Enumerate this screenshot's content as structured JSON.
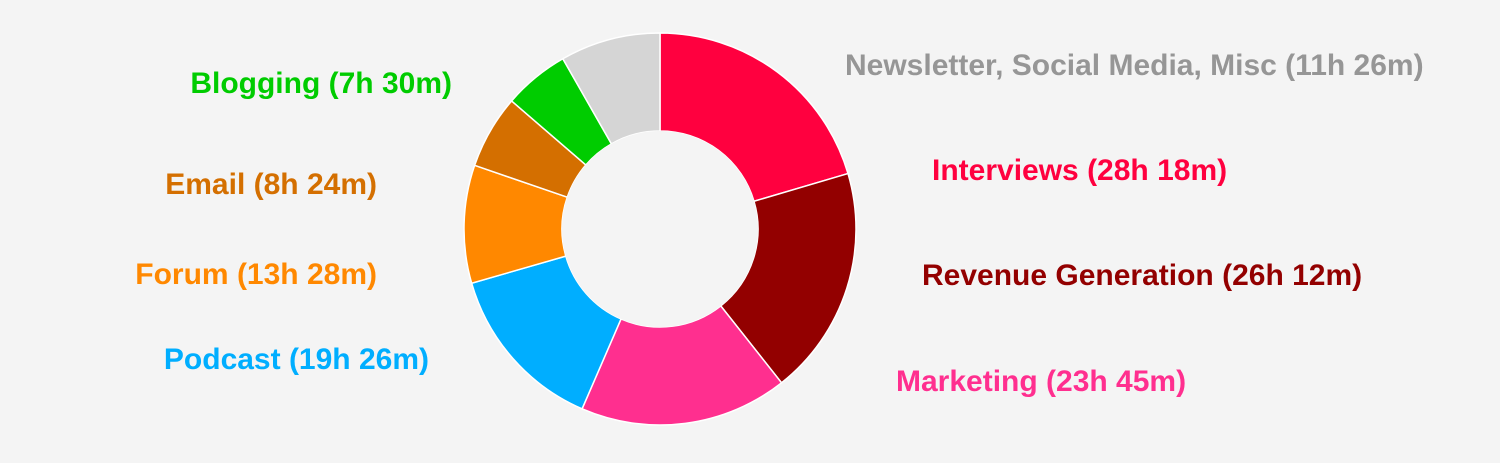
{
  "chart_data": {
    "type": "pie",
    "variant": "donut",
    "unit": "hours",
    "slices": [
      {
        "label": "Interviews (28h 18m)",
        "category": "Interviews",
        "value": 28.3,
        "color": "#ff003f"
      },
      {
        "label": "Revenue Generation (26h 12m)",
        "category": "Revenue Generation",
        "value": 26.2,
        "color": "#930000"
      },
      {
        "label": "Marketing (23h 45m)",
        "category": "Marketing",
        "value": 23.75,
        "color": "#ff2f8f"
      },
      {
        "label": "Podcast (19h 26m)",
        "category": "Podcast",
        "value": 19.43,
        "color": "#00aeff"
      },
      {
        "label": "Forum (13h 28m)",
        "category": "Forum",
        "value": 13.47,
        "color": "#ff8800"
      },
      {
        "label": "Email (8h 24m)",
        "category": "Email",
        "value": 8.4,
        "color": "#d46f00"
      },
      {
        "label": "Blogging (7h 30m)",
        "category": "Blogging",
        "value": 7.5,
        "color": "#00cc00"
      },
      {
        "label": "Newsletter, Social Media, Misc (11h 26m)",
        "category": "Newsletter, Social Media, Misc",
        "value": 11.43,
        "color": "#d5d5d5"
      }
    ],
    "label_text_colors": [
      "#ff003f",
      "#930000",
      "#ff2f8f",
      "#00aeff",
      "#ff8800",
      "#d46f00",
      "#00cc00",
      "#969696"
    ],
    "legend": "none",
    "start_angle": "12 o'clock",
    "direction": "clockwise"
  }
}
